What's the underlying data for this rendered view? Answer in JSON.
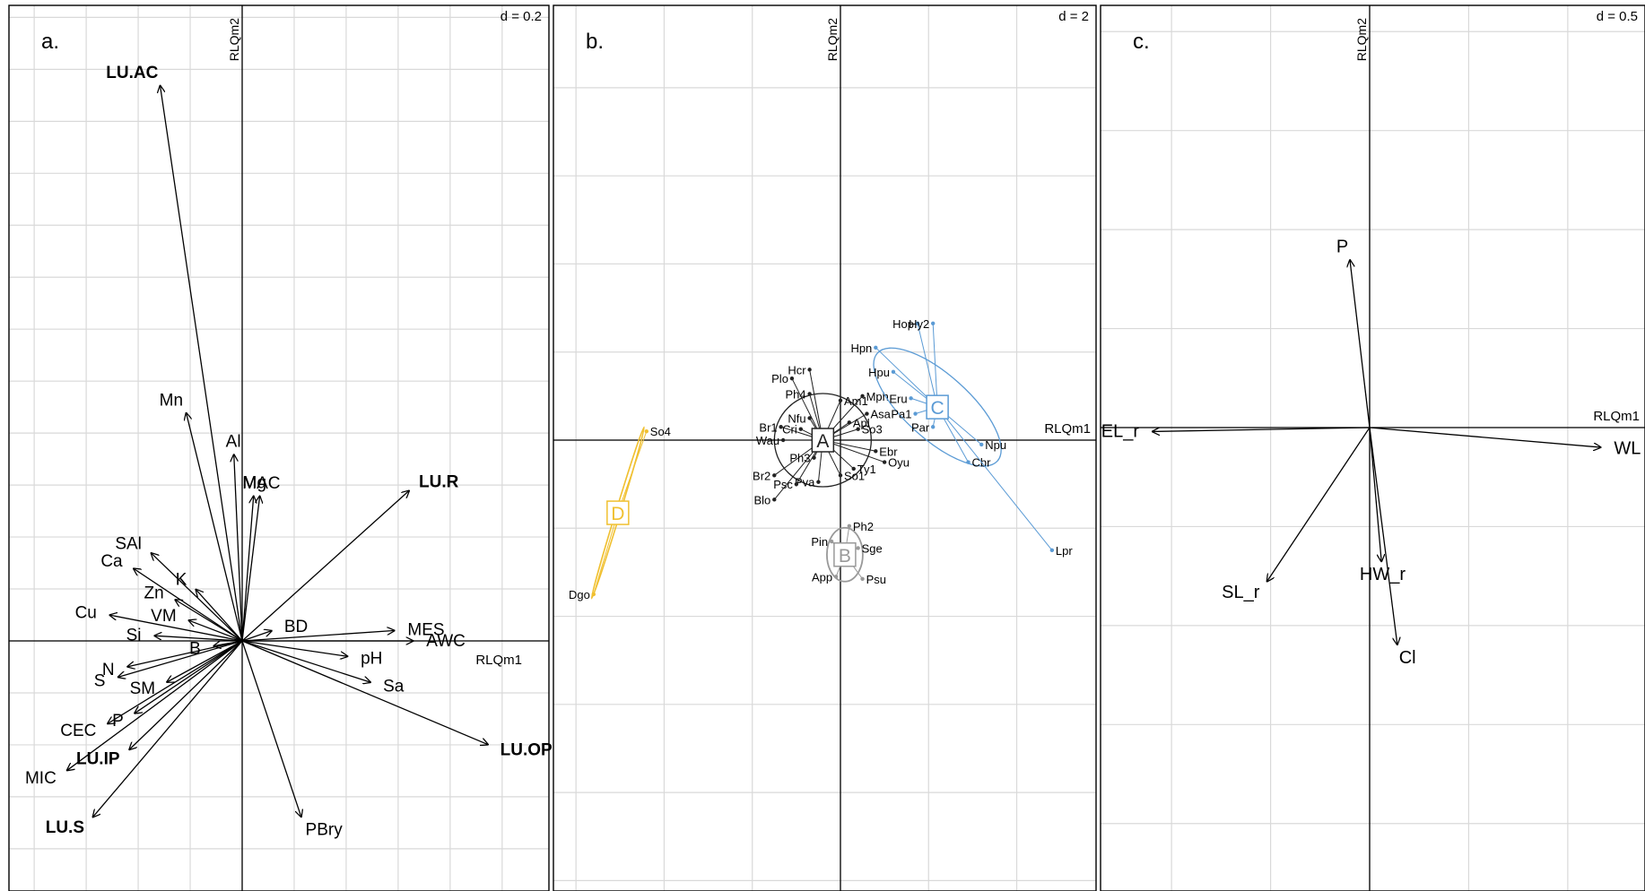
{
  "chart_data": [
    {
      "type": "biplot",
      "panel_label": "a.",
      "scale_label": "d = 0.2",
      "xlabel": "RLQm1",
      "ylabel": "RLQm2",
      "grid": true,
      "xlim": [
        -0.45,
        0.59
      ],
      "ylim": [
        -0.47,
        1.2
      ],
      "vectors": [
        {
          "name": "LU.AC",
          "x": -0.158,
          "y": 1.07,
          "bold": true
        },
        {
          "name": "Mn",
          "x": -0.108,
          "y": 0.44
        },
        {
          "name": "Al",
          "x": -0.016,
          "y": 0.36
        },
        {
          "name": "Mg",
          "x": 0.022,
          "y": 0.28
        },
        {
          "name": "MAC",
          "x": 0.034,
          "y": 0.28
        },
        {
          "name": "LU.R",
          "x": 0.322,
          "y": 0.29,
          "bold": true
        },
        {
          "name": "SAl",
          "x": -0.176,
          "y": 0.17
        },
        {
          "name": "Ca",
          "x": -0.21,
          "y": 0.14
        },
        {
          "name": "K",
          "x": -0.09,
          "y": 0.1
        },
        {
          "name": "Zn",
          "x": -0.13,
          "y": 0.08
        },
        {
          "name": "VM",
          "x": -0.104,
          "y": 0.04
        },
        {
          "name": "Cu",
          "x": -0.256,
          "y": 0.05
        },
        {
          "name": "Si",
          "x": -0.17,
          "y": 0.01
        },
        {
          "name": "B",
          "x": -0.056,
          "y": -0.01
        },
        {
          "name": "BD",
          "x": 0.058,
          "y": 0.02
        },
        {
          "name": "MES",
          "x": 0.294,
          "y": 0.02
        },
        {
          "name": "AWC",
          "x": 0.33,
          "y": 0.0
        },
        {
          "name": "pH",
          "x": 0.204,
          "y": -0.03
        },
        {
          "name": "Sa",
          "x": 0.248,
          "y": -0.08
        },
        {
          "name": "LU.OP",
          "x": 0.474,
          "y": -0.2,
          "bold": true
        },
        {
          "name": "N",
          "x": -0.222,
          "y": -0.05
        },
        {
          "name": "S",
          "x": -0.24,
          "y": -0.07
        },
        {
          "name": "SM",
          "x": -0.146,
          "y": -0.08
        },
        {
          "name": "CEC",
          "x": -0.26,
          "y": -0.16
        },
        {
          "name": "P",
          "x": -0.208,
          "y": -0.14
        },
        {
          "name": "LU.IP",
          "x": -0.218,
          "y": -0.21,
          "bold": true
        },
        {
          "name": "MIC",
          "x": -0.338,
          "y": -0.25
        },
        {
          "name": "LU.S",
          "x": -0.288,
          "y": -0.34,
          "bold": true
        },
        {
          "name": "PBry",
          "x": 0.114,
          "y": -0.34
        }
      ]
    },
    {
      "type": "scatter",
      "panel_label": "b.",
      "scale_label": "d = 2",
      "xlabel": "RLQm1",
      "ylabel": "RLQm2",
      "grid": true,
      "xlim": [
        -6.6,
        5.8
      ],
      "ylim": [
        -10.4,
        9.9
      ],
      "groups": [
        {
          "name": "A",
          "color": "#222222",
          "cx": -0.4,
          "cy": 0.0,
          "species": [
            {
              "name": "Plo",
              "x": -1.1,
              "y": 1.4
            },
            {
              "name": "Hcr",
              "x": -0.7,
              "y": 1.6
            },
            {
              "name": "Ph4",
              "x": -0.7,
              "y": 1.05
            },
            {
              "name": "Am1",
              "x": 0.0,
              "y": 0.9
            },
            {
              "name": "Mph",
              "x": 0.5,
              "y": 1.0
            },
            {
              "name": "Asa",
              "x": 0.6,
              "y": 0.6
            },
            {
              "name": "Apl",
              "x": 0.2,
              "y": 0.4
            },
            {
              "name": "So3",
              "x": 0.4,
              "y": 0.25
            },
            {
              "name": "Nfu",
              "x": -0.7,
              "y": 0.5
            },
            {
              "name": "Br1",
              "x": -1.35,
              "y": 0.3
            },
            {
              "name": "Wau",
              "x": -1.3,
              "y": 0.0
            },
            {
              "name": "Cri",
              "x": -0.9,
              "y": 0.25
            },
            {
              "name": "Ebr",
              "x": 0.8,
              "y": -0.25
            },
            {
              "name": "Oyu",
              "x": 1.0,
              "y": -0.5
            },
            {
              "name": "Ty1",
              "x": 0.3,
              "y": -0.65
            },
            {
              "name": "So1",
              "x": 0.0,
              "y": -0.8
            },
            {
              "name": "Pva",
              "x": -0.5,
              "y": -0.95
            },
            {
              "name": "Psc",
              "x": -1.0,
              "y": -1.0
            },
            {
              "name": "Br2",
              "x": -1.5,
              "y": -0.8
            },
            {
              "name": "Blo",
              "x": -1.5,
              "y": -1.35
            },
            {
              "name": "Ph3",
              "x": -0.6,
              "y": -0.4
            }
          ]
        },
        {
          "name": "B",
          "color": "#999999",
          "cx": 0.1,
          "cy": -2.6,
          "species": [
            {
              "name": "Ph2",
              "x": 0.2,
              "y": -1.95
            },
            {
              "name": "Pin",
              "x": -0.2,
              "y": -2.3
            },
            {
              "name": "Sge",
              "x": 0.4,
              "y": -2.45
            },
            {
              "name": "App",
              "x": -0.1,
              "y": -3.1
            },
            {
              "name": "Psu",
              "x": 0.5,
              "y": -3.15
            }
          ]
        },
        {
          "name": "C",
          "color": "#5b9bd5",
          "cx": 2.2,
          "cy": 0.75,
          "species": [
            {
              "name": "Hop",
              "x": 1.75,
              "y": 2.65
            },
            {
              "name": "Hy2",
              "x": 2.1,
              "y": 2.65
            },
            {
              "name": "Hpn",
              "x": 0.8,
              "y": 2.1
            },
            {
              "name": "Hpu",
              "x": 1.2,
              "y": 1.55
            },
            {
              "name": "Eru",
              "x": 1.6,
              "y": 0.95
            },
            {
              "name": "Pa1",
              "x": 1.7,
              "y": 0.6
            },
            {
              "name": "Par",
              "x": 2.1,
              "y": 0.3
            },
            {
              "name": "Npu",
              "x": 3.2,
              "y": -0.1
            },
            {
              "name": "Cbr",
              "x": 2.9,
              "y": -0.5
            },
            {
              "name": "Lpr",
              "x": 4.8,
              "y": -2.5
            }
          ]
        },
        {
          "name": "D",
          "color": "#f0c030",
          "cx": -5.05,
          "cy": -1.65,
          "species": [
            {
              "name": "So4",
              "x": -4.4,
              "y": 0.2
            },
            {
              "name": "Dgo",
              "x": -5.6,
              "y": -3.5
            }
          ]
        }
      ]
    },
    {
      "type": "biplot",
      "panel_label": "c.",
      "scale_label": "d = 0.5",
      "xlabel": "RLQm1",
      "ylabel": "RLQm2",
      "grid": true,
      "xlim": [
        -1.35,
        1.39
      ],
      "ylim": [
        -2.36,
        2.14
      ],
      "vectors": [
        {
          "name": "P",
          "x": -0.1,
          "y": 0.85
        },
        {
          "name": "EL_r",
          "x": -1.1,
          "y": -0.02
        },
        {
          "name": "WL",
          "x": 1.17,
          "y": -0.1
        },
        {
          "name": "SL_r",
          "x": -0.52,
          "y": -0.78
        },
        {
          "name": "HW_r",
          "x": 0.06,
          "y": -0.68
        },
        {
          "name": "Cl",
          "x": 0.14,
          "y": -1.1
        }
      ]
    }
  ],
  "colors": {
    "axis": "#000000",
    "grid": "#d9d9d9",
    "arrow": "#000000"
  }
}
